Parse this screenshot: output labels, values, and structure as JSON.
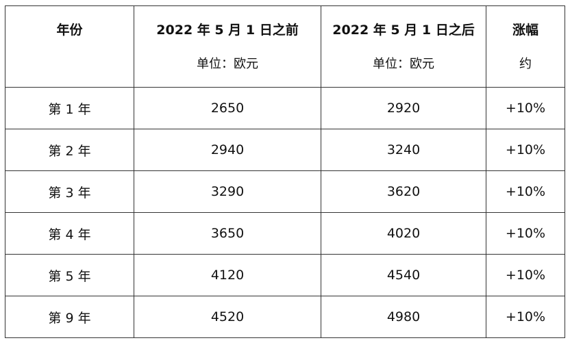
{
  "table": {
    "header": [
      {
        "title": "年份"
      },
      {
        "title": "2022 年 5 月 1 日之前",
        "note": "单位：欧元"
      },
      {
        "title": "2022 年 5 月 1 日之后",
        "note": "单位：欧元"
      },
      {
        "title": "涨幅",
        "note": "约"
      }
    ],
    "rows": [
      [
        "第 1 年",
        2650,
        2920,
        "+10%"
      ],
      [
        "第 2 年",
        2940,
        3240,
        "+10%"
      ],
      [
        "第 3 年",
        3290,
        3620,
        "+10%"
      ],
      [
        "第 4 年",
        3650,
        4020,
        "+10%"
      ],
      [
        "第 5 年",
        4120,
        4540,
        "+10%"
      ],
      [
        "第 9 年",
        4520,
        4980,
        "+10%"
      ]
    ]
  }
}
